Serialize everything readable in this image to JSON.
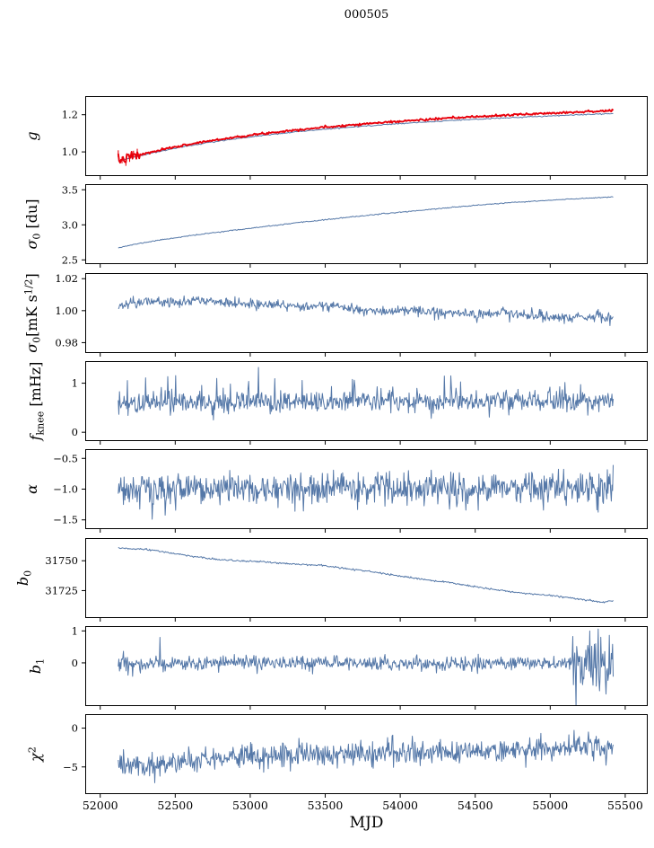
{
  "title": "000505",
  "xlabel": "MJD",
  "colors": {
    "line": "#5578a8",
    "accent": "#e8000b",
    "axis": "#000000",
    "background": "#ffffff"
  },
  "chart_data": {
    "type": "line",
    "title": "000505",
    "xlabel": "MJD",
    "x_range": [
      51900,
      55650
    ],
    "x_data_range": [
      52120,
      55420
    ],
    "x_ticks": [
      52000,
      52500,
      53000,
      53500,
      54000,
      54500,
      55000,
      55500
    ],
    "x_tick_labels": [
      "52000",
      "52500",
      "53000",
      "53500",
      "54000",
      "54500",
      "55000",
      "55500"
    ],
    "panels": [
      {
        "id": "g",
        "ylabel_text": "g",
        "ylabel_segments": [
          {
            "t": "g",
            "i": true
          }
        ],
        "ylim": [
          0.87,
          1.3
        ],
        "ytick_vals": [
          1.0,
          1.2
        ],
        "ytick_labels": [
          "1.0",
          "1.2"
        ],
        "label_off": 54,
        "series": [
          {
            "name": "gain-smooth-model",
            "color": "#5578a8",
            "lw": 1,
            "style": "smooth",
            "seed": 3,
            "n": 420,
            "noise": 0.0015,
            "points": [
              [
                52120,
                0.95
              ],
              [
                52200,
                0.968
              ],
              [
                52350,
                0.995
              ],
              [
                52500,
                1.02
              ],
              [
                52700,
                1.048
              ],
              [
                52900,
                1.07
              ],
              [
                53100,
                1.09
              ],
              [
                53300,
                1.108
              ],
              [
                53500,
                1.122
              ],
              [
                53700,
                1.135
              ],
              [
                53900,
                1.147
              ],
              [
                54100,
                1.157
              ],
              [
                54300,
                1.167
              ],
              [
                54500,
                1.175
              ],
              [
                54700,
                1.183
              ],
              [
                54900,
                1.19
              ],
              [
                55100,
                1.197
              ],
              [
                55250,
                1.201
              ],
              [
                55420,
                1.206
              ]
            ]
          },
          {
            "name": "gain-measured",
            "color": "#e8000b",
            "lw": 1.9,
            "style": "noisy",
            "seed": 7,
            "n": 520,
            "noise": 0.0028,
            "boost": [
              {
                "x0": 52120,
                "x1": 52260,
                "f": 5
              }
            ],
            "errorbars": {
              "x0": 52120,
              "x1": 52255,
              "yerr": 0.018,
              "stride": 4
            },
            "points": [
              [
                52120,
                0.952
              ],
              [
                52200,
                0.972
              ],
              [
                52350,
                1.0
              ],
              [
                52500,
                1.027
              ],
              [
                52700,
                1.056
              ],
              [
                52900,
                1.079
              ],
              [
                53100,
                1.1
              ],
              [
                53300,
                1.118
              ],
              [
                53500,
                1.133
              ],
              [
                53700,
                1.147
              ],
              [
                53900,
                1.159
              ],
              [
                54100,
                1.17
              ],
              [
                54300,
                1.18
              ],
              [
                54500,
                1.189
              ],
              [
                54700,
                1.197
              ],
              [
                54900,
                1.205
              ],
              [
                55100,
                1.212
              ],
              [
                55250,
                1.217
              ],
              [
                55420,
                1.222
              ]
            ]
          }
        ]
      },
      {
        "id": "sigma0-du",
        "ylabel_text": "σ0 [du]",
        "ylabel_segments": [
          {
            "t": "σ",
            "i": true
          },
          {
            "t": "0",
            "sub": true
          },
          {
            "t": " [du]"
          }
        ],
        "ylim": [
          2.44,
          3.58
        ],
        "ytick_vals": [
          2.5,
          3.0,
          3.5
        ],
        "ytick_labels": [
          "2.5",
          "3.0",
          "3.5"
        ],
        "label_off": 54,
        "series": [
          {
            "name": "sigma0-du",
            "color": "#5578a8",
            "lw": 1,
            "style": "smooth",
            "seed": 11,
            "n": 500,
            "noise": 0.0035,
            "points": [
              [
                52120,
                2.675
              ],
              [
                52250,
                2.73
              ],
              [
                52400,
                2.785
              ],
              [
                52600,
                2.845
              ],
              [
                52800,
                2.9
              ],
              [
                53000,
                2.95
              ],
              [
                53200,
                3.0
              ],
              [
                53400,
                3.05
              ],
              [
                53600,
                3.095
              ],
              [
                53800,
                3.14
              ],
              [
                54000,
                3.18
              ],
              [
                54200,
                3.22
              ],
              [
                54400,
                3.26
              ],
              [
                54600,
                3.295
              ],
              [
                54800,
                3.325
              ],
              [
                55000,
                3.35
              ],
              [
                55200,
                3.375
              ],
              [
                55420,
                3.4
              ]
            ]
          }
        ]
      },
      {
        "id": "sigma0-mk",
        "ylabel_text": "σ0 [mK s^1/2]",
        "ylabel_segments": [
          {
            "t": "σ",
            "i": true
          },
          {
            "t": "0",
            "sub": true
          },
          {
            "t": "[mK s"
          },
          {
            "t": "1/2",
            "sup": true
          },
          {
            "t": "]"
          }
        ],
        "ylim": [
          0.9735,
          1.0235
        ],
        "ytick_vals": [
          0.98,
          1.0,
          1.02
        ],
        "ytick_labels": [
          "0.98",
          "1.00",
          "1.02"
        ],
        "label_off": 54,
        "series": [
          {
            "name": "sigma0-mk",
            "color": "#5578a8",
            "lw": 1,
            "style": "noisy",
            "seed": 21,
            "n": 760,
            "noise": 0.0016,
            "tail_p": 0.02,
            "tail": 0.004,
            "tail_sign": 0,
            "points": [
              [
                52120,
                1.0035
              ],
              [
                52300,
                1.006
              ],
              [
                52500,
                1.0055
              ],
              [
                52700,
                1.0065
              ],
              [
                52900,
                1.004
              ],
              [
                53100,
                1.0045
              ],
              [
                53300,
                1.002
              ],
              [
                53500,
                1.0035
              ],
              [
                53700,
                1.001
              ],
              [
                53900,
                0.9995
              ],
              [
                54100,
                1.0
              ],
              [
                54300,
                0.9985
              ],
              [
                54500,
                0.998
              ],
              [
                54700,
                0.9985
              ],
              [
                54900,
                0.997
              ],
              [
                55100,
                0.9955
              ],
              [
                55300,
                0.996
              ],
              [
                55420,
                0.9952
              ]
            ]
          }
        ]
      },
      {
        "id": "fknee",
        "ylabel_text": "fknee [mHz]",
        "ylabel_segments": [
          {
            "t": "f",
            "i": true
          },
          {
            "t": "knee",
            "sub": true
          },
          {
            "t": " [mHz]"
          }
        ],
        "ylim": [
          -0.18,
          1.45
        ],
        "ytick_vals": [
          0,
          1
        ],
        "ytick_labels": [
          "0",
          "1"
        ],
        "label_off": 50,
        "series": [
          {
            "name": "fknee",
            "color": "#5578a8",
            "lw": 1,
            "style": "noisy",
            "seed": 31,
            "n": 760,
            "noise": 0.11,
            "tail_p": 0.05,
            "tail": 0.5,
            "tail_sign": 1,
            "points": [
              [
                52120,
                0.6
              ],
              [
                53000,
                0.62
              ],
              [
                54000,
                0.63
              ],
              [
                55420,
                0.65
              ]
            ]
          }
        ]
      },
      {
        "id": "alpha",
        "ylabel_text": "α",
        "ylabel_segments": [
          {
            "t": "α",
            "i": true
          }
        ],
        "ylim": [
          -1.65,
          -0.35
        ],
        "ytick_vals": [
          -1.5,
          -1.0,
          -0.5
        ],
        "ytick_labels": [
          "−1.5",
          "−1.0",
          "−0.5"
        ],
        "label_off": 54,
        "series": [
          {
            "name": "alpha",
            "color": "#5578a8",
            "lw": 1,
            "style": "noisy",
            "seed": 41,
            "n": 760,
            "noise": 0.13,
            "tail_p": 0.04,
            "tail": 0.3,
            "tail_sign": 0,
            "points": [
              [
                52120,
                -1.0
              ],
              [
                53500,
                -0.99
              ],
              [
                55420,
                -0.97
              ]
            ]
          }
        ]
      },
      {
        "id": "b0",
        "ylabel_text": "b0",
        "ylabel_segments": [
          {
            "t": "b",
            "i": true
          },
          {
            "t": "0",
            "sub": true
          }
        ],
        "ylim": [
          31702,
          31769
        ],
        "ytick_vals": [
          31725,
          31750
        ],
        "ytick_labels": [
          "31725",
          "31750"
        ],
        "label_off": 64,
        "series": [
          {
            "name": "b0",
            "color": "#5578a8",
            "lw": 1,
            "style": "noisy",
            "seed": 51,
            "n": 600,
            "noise": 0.35,
            "points": [
              [
                52120,
                31760.5
              ],
              [
                52300,
                31759.5
              ],
              [
                52450,
                31757.0
              ],
              [
                52600,
                31754.0
              ],
              [
                52750,
                31751.5
              ],
              [
                52900,
                31750.0
              ],
              [
                53100,
                31749.0
              ],
              [
                53300,
                31747.0
              ],
              [
                53450,
                31746.5
              ],
              [
                53600,
                31744.0
              ],
              [
                53800,
                31741.0
              ],
              [
                54000,
                31737.0
              ],
              [
                54200,
                31733.5
              ],
              [
                54350,
                31731.5
              ],
              [
                54500,
                31728.0
              ],
              [
                54650,
                31725.5
              ],
              [
                54800,
                31723.0
              ],
              [
                54950,
                31721.5
              ],
              [
                55100,
                31719.5
              ],
              [
                55250,
                31717.0
              ],
              [
                55350,
                31715.0
              ],
              [
                55420,
                31716.5
              ]
            ]
          }
        ]
      },
      {
        "id": "b1",
        "ylabel_text": "b1",
        "ylabel_segments": [
          {
            "t": "b",
            "i": true
          },
          {
            "t": "1",
            "sub": true
          }
        ],
        "ylim": [
          -1.35,
          1.15
        ],
        "ytick_vals": [
          0,
          1
        ],
        "ytick_labels": [
          "0",
          "1"
        ],
        "label_off": 50,
        "series": [
          {
            "name": "b1",
            "color": "#5578a8",
            "lw": 1,
            "style": "noisy",
            "seed": 61,
            "n": 760,
            "noise": 0.11,
            "tail_p": 0.03,
            "tail": 0.3,
            "tail_sign": 0,
            "boost": [
              {
                "x0": 52120,
                "x1": 52200,
                "f": 2
              },
              {
                "x0": 55150,
                "x1": 55420,
                "f": 4
              }
            ],
            "spikes": [
              {
                "x": 52400,
                "v": 0.8
              }
            ],
            "points": [
              [
                52120,
                -0.05
              ],
              [
                53000,
                0.0
              ],
              [
                54000,
                -0.02
              ],
              [
                55420,
                0.0
              ]
            ]
          }
        ]
      },
      {
        "id": "chi2",
        "ylabel_text": "χ2",
        "ylabel_segments": [
          {
            "t": "χ",
            "i": true
          },
          {
            "t": "2",
            "sup": true
          }
        ],
        "ylim": [
          -8.5,
          1.8
        ],
        "ytick_vals": [
          -5,
          0
        ],
        "ytick_labels": [
          "−5",
          "0"
        ],
        "label_off": 50,
        "series": [
          {
            "name": "chi2",
            "color": "#5578a8",
            "lw": 1,
            "style": "noisy",
            "seed": 71,
            "n": 760,
            "noise": 0.75,
            "tail_p": 0.04,
            "tail": 1.5,
            "tail_sign": -1,
            "points": [
              [
                52120,
                -4.4
              ],
              [
                52300,
                -4.9
              ],
              [
                52500,
                -4.5
              ],
              [
                52700,
                -4.1
              ],
              [
                52900,
                -3.7
              ],
              [
                53100,
                -3.4
              ],
              [
                53300,
                -3.3
              ],
              [
                53500,
                -3.5
              ],
              [
                53700,
                -3.2
              ],
              [
                53900,
                -3.2
              ],
              [
                54100,
                -3.1
              ],
              [
                54300,
                -3.0
              ],
              [
                54500,
                -2.9
              ],
              [
                54700,
                -2.8
              ],
              [
                54900,
                -2.7
              ],
              [
                55100,
                -2.5
              ],
              [
                55250,
                -2.3
              ],
              [
                55420,
                -2.6
              ]
            ]
          }
        ]
      }
    ]
  }
}
